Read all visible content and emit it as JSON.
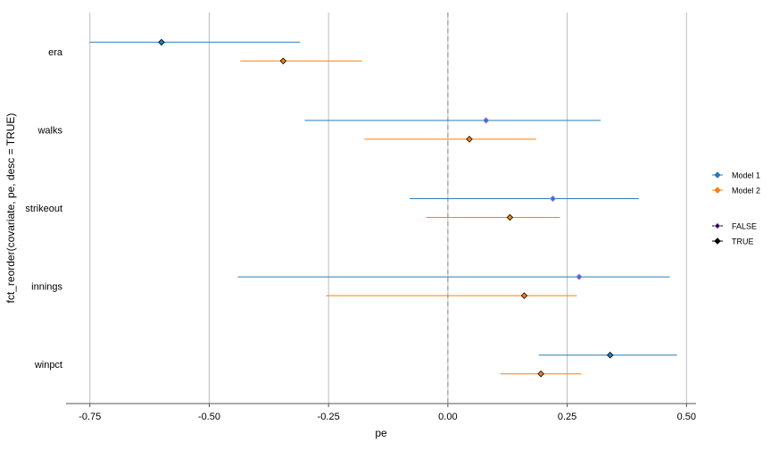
{
  "chart_data": {
    "type": "scatter",
    "variant": "coefficient-plot",
    "xlabel": "pe",
    "ylabel": "fct_reorder(covariate, pe, desc = TRUE)",
    "xlim": [
      -0.8,
      0.52
    ],
    "x_ticks": [
      -0.75,
      -0.5,
      -0.25,
      0.0,
      0.25,
      0.5
    ],
    "x_tick_labels": [
      "-0.75",
      "-0.50",
      "-0.25",
      "0.00",
      "0.25",
      "0.50"
    ],
    "categories": [
      "era",
      "walks",
      "strikeout",
      "innings",
      "winpct"
    ],
    "reference_line": 0,
    "grid": "vertical major",
    "legend_position": "right",
    "series": [
      {
        "name": "Model 1",
        "color": "#2B7BB9",
        "estimates": [
          -0.6,
          0.08,
          0.22,
          0.275,
          0.34
        ],
        "lower": [
          -0.75,
          -0.3,
          -0.08,
          -0.44,
          0.19
        ],
        "upper": [
          -0.31,
          0.32,
          0.4,
          0.465,
          0.48
        ],
        "significant": [
          "TRUE",
          "FALSE",
          "FALSE",
          "FALSE",
          "TRUE"
        ]
      },
      {
        "name": "Model 2",
        "color": "#FF7F0E",
        "estimates": [
          -0.345,
          0.045,
          0.13,
          0.16,
          0.195
        ],
        "lower": [
          -0.435,
          -0.175,
          -0.045,
          -0.255,
          0.11
        ],
        "upper": [
          -0.18,
          0.185,
          0.235,
          0.27,
          0.28
        ],
        "significant": [
          "TRUE",
          "TRUE",
          "TRUE",
          "TRUE",
          "TRUE"
        ]
      }
    ],
    "shape_legend": [
      "FALSE",
      "TRUE"
    ],
    "shape_colors": {
      "FALSE": "#C77CFF",
      "TRUE": "#000000"
    },
    "grid_color": "#BDBDBD",
    "axis_color": "#555555"
  }
}
